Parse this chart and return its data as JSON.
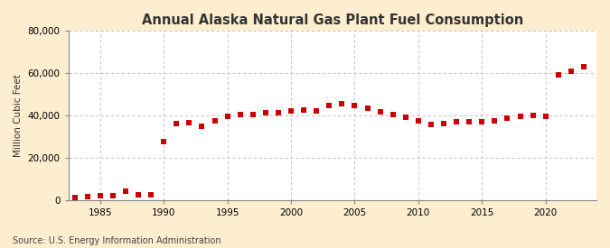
{
  "title": "Annual Alaska Natural Gas Plant Fuel Consumption",
  "ylabel": "Million Cubic Feet",
  "source": "Source: U.S. Energy Information Administration",
  "outer_bg": "#fceece",
  "plot_bg": "#ffffff",
  "marker_color": "#cc0000",
  "grid_color": "#bbbbbb",
  "years": [
    1983,
    1984,
    1985,
    1986,
    1987,
    1988,
    1989,
    1990,
    1991,
    1992,
    1993,
    1994,
    1995,
    1996,
    1997,
    1998,
    1999,
    2000,
    2001,
    2002,
    2003,
    2004,
    2005,
    2006,
    2007,
    2008,
    2009,
    2010,
    2011,
    2012,
    2013,
    2014,
    2015,
    2016,
    2017,
    2018,
    2019,
    2020,
    2021,
    2022,
    2023
  ],
  "values": [
    1200,
    1600,
    1800,
    2000,
    4200,
    2300,
    2500,
    27500,
    36000,
    36500,
    35000,
    37500,
    39500,
    40500,
    40500,
    41000,
    41000,
    42000,
    42500,
    42000,
    44500,
    45500,
    44500,
    43200,
    41500,
    40500,
    39200,
    37200,
    35500,
    36200,
    37000,
    36800,
    37000,
    37500,
    38500,
    39500,
    40000,
    39500,
    59000,
    61000,
    63000
  ],
  "ylim": [
    0,
    80000
  ],
  "yticks": [
    0,
    20000,
    40000,
    60000,
    80000
  ],
  "xlim": [
    1982.5,
    2024
  ],
  "xticks": [
    1985,
    1990,
    1995,
    2000,
    2005,
    2010,
    2015,
    2020
  ],
  "title_fontsize": 10.5,
  "label_fontsize": 7.5,
  "tick_fontsize": 7.5,
  "source_fontsize": 7
}
